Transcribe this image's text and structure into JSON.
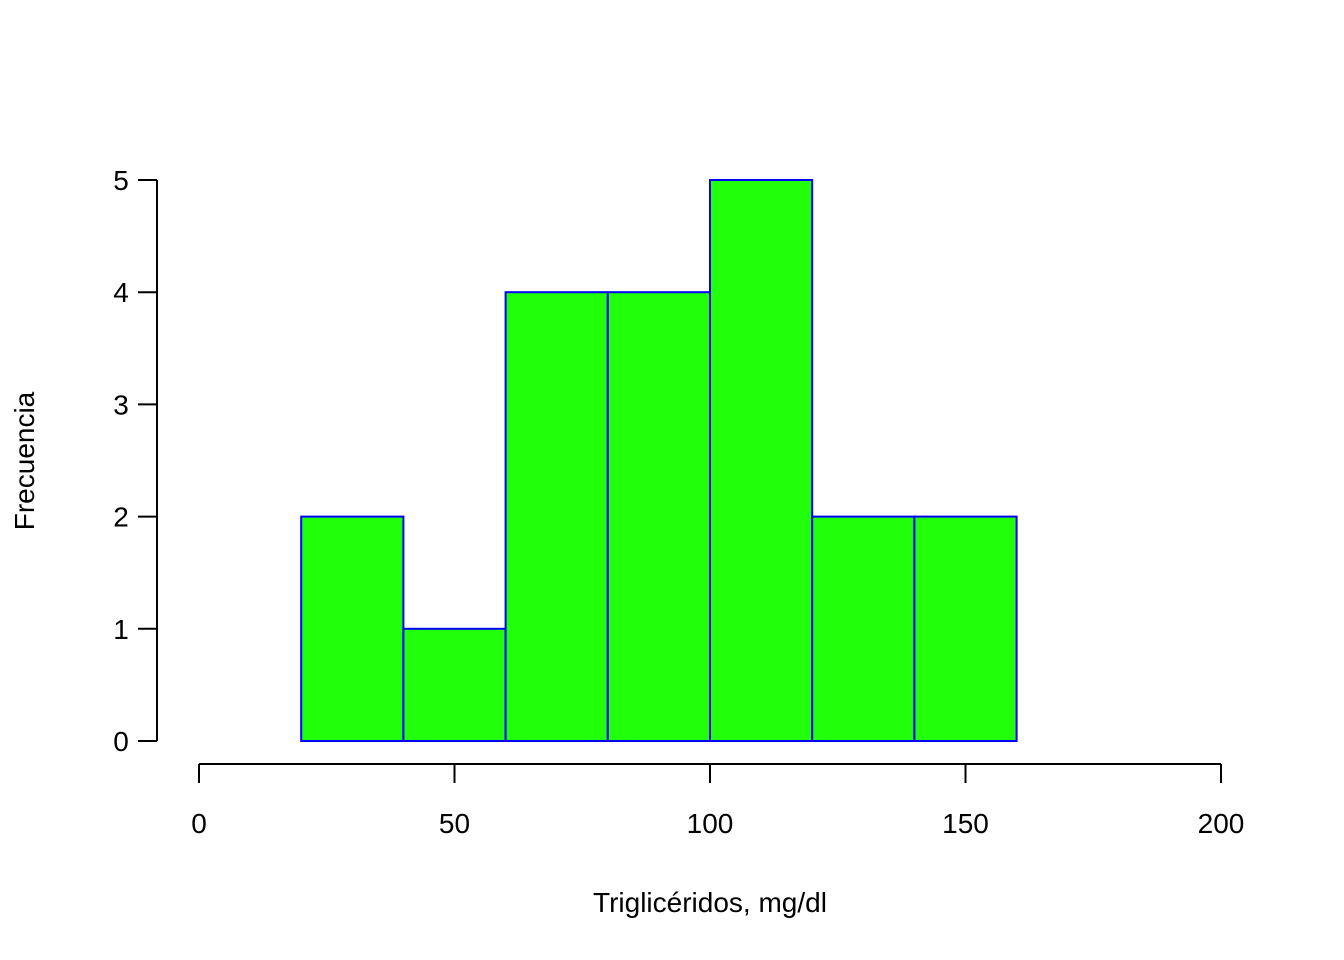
{
  "chart_data": {
    "type": "bar",
    "subtype": "histogram",
    "title": "",
    "xlabel": "Triglicéridos, mg/dl",
    "ylabel": "Frecuencia",
    "bins": [
      {
        "from": 20,
        "to": 40,
        "count": 2
      },
      {
        "from": 40,
        "to": 60,
        "count": 1
      },
      {
        "from": 60,
        "to": 80,
        "count": 4
      },
      {
        "from": 80,
        "to": 100,
        "count": 4
      },
      {
        "from": 100,
        "to": 120,
        "count": 5
      },
      {
        "from": 120,
        "to": 140,
        "count": 2
      },
      {
        "from": 140,
        "to": 160,
        "count": 2
      }
    ],
    "xlim": [
      0,
      200
    ],
    "ylim": [
      0,
      5
    ],
    "x_ticks": [
      0,
      50,
      100,
      150,
      200
    ],
    "y_ticks": [
      0,
      1,
      2,
      3,
      4,
      5
    ],
    "grid": false,
    "legend": "none",
    "colors": {
      "bar_fill": "#22ff0b",
      "bar_border": "#0000ff",
      "axis": "#000000"
    }
  }
}
